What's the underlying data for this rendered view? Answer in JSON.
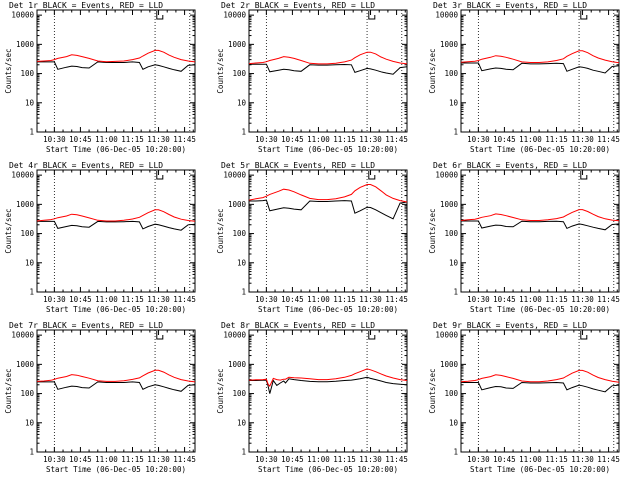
{
  "colors": {
    "events": "#000000",
    "lld": "#ff0000"
  },
  "common": {
    "ylabel": "Counts/sec",
    "xlabel": "Start Time (06-Dec-05 10:20:00)",
    "yscale": "log",
    "ylim": [
      1,
      15000
    ],
    "xlim_minutes": [
      10,
      101
    ],
    "xtick_minutes": [
      20,
      35,
      50,
      65,
      80,
      95
    ],
    "vlines_minutes": [
      20,
      78,
      98
    ],
    "marker_minute": 79
  },
  "chart_data": [
    {
      "type": "line",
      "title": "Det 1r BLACK = Events, RED = LLD",
      "xlabel": "Start Time (06-Dec-05 10:20:00)",
      "ylabel": "Counts/sec",
      "yscale": "log",
      "ylim": [
        1,
        15000
      ],
      "x": [
        10,
        14,
        18,
        20,
        22,
        27,
        30,
        33,
        36,
        40,
        45,
        50,
        55,
        60,
        65,
        69,
        71,
        74,
        78,
        80,
        83,
        86,
        89,
        93,
        97,
        101
      ],
      "xtick_labels": [
        "10:30",
        "10:45",
        "11:00",
        "11:15",
        "11:30",
        "11:45"
      ],
      "series": [
        {
          "name": "Events",
          "color": "#000000",
          "values": [
            250,
            250,
            250,
            250,
            140,
            165,
            180,
            175,
            160,
            155,
            250,
            240,
            240,
            240,
            250,
            240,
            140,
            170,
            200,
            190,
            170,
            150,
            135,
            120,
            190,
            200
          ]
        },
        {
          "name": "LLD",
          "color": "#ff0000",
          "values": [
            260,
            270,
            280,
            300,
            330,
            380,
            440,
            420,
            380,
            330,
            270,
            255,
            260,
            270,
            300,
            340,
            400,
            500,
            620,
            620,
            540,
            430,
            360,
            300,
            270,
            250
          ]
        }
      ]
    },
    {
      "type": "line",
      "title": "Det 2r BLACK = Events, RED = LLD",
      "xlabel": "Start Time (06-Dec-05 10:20:00)",
      "ylabel": "Counts/sec",
      "yscale": "log",
      "ylim": [
        1,
        15000
      ],
      "x": [
        10,
        14,
        18,
        20,
        22,
        27,
        30,
        33,
        36,
        40,
        45,
        50,
        55,
        60,
        65,
        69,
        71,
        74,
        78,
        80,
        83,
        86,
        89,
        93,
        97,
        101
      ],
      "xtick_labels": [
        "10:30",
        "10:45",
        "11:00",
        "11:15",
        "11:30",
        "11:45"
      ],
      "series": [
        {
          "name": "Events",
          "color": "#000000",
          "values": [
            210,
            210,
            210,
            210,
            115,
            130,
            140,
            135,
            125,
            120,
            200,
            195,
            195,
            200,
            205,
            200,
            110,
            125,
            150,
            145,
            130,
            115,
            105,
            95,
            160,
            170
          ]
        },
        {
          "name": "LLD",
          "color": "#ff0000",
          "values": [
            220,
            230,
            240,
            255,
            280,
            330,
            380,
            360,
            330,
            280,
            225,
            215,
            215,
            225,
            250,
            290,
            350,
            440,
            540,
            540,
            470,
            370,
            310,
            260,
            230,
            215
          ]
        }
      ]
    },
    {
      "type": "line",
      "title": "Det 3r BLACK = Events, RED = LLD",
      "xlabel": "Start Time (06-Dec-05 10:20:00)",
      "ylabel": "Counts/sec",
      "yscale": "log",
      "ylim": [
        1,
        15000
      ],
      "x": [
        10,
        14,
        18,
        20,
        22,
        27,
        30,
        33,
        36,
        40,
        45,
        50,
        55,
        60,
        65,
        69,
        71,
        74,
        78,
        80,
        83,
        86,
        89,
        93,
        97,
        101
      ],
      "xtick_labels": [
        "10:30",
        "10:45",
        "11:00",
        "11:15",
        "11:30",
        "11:45"
      ],
      "series": [
        {
          "name": "Events",
          "color": "#000000",
          "values": [
            230,
            230,
            230,
            230,
            125,
            145,
            155,
            150,
            140,
            135,
            225,
            215,
            215,
            220,
            225,
            220,
            120,
            140,
            170,
            165,
            150,
            130,
            120,
            105,
            175,
            185
          ]
        },
        {
          "name": "LLD",
          "color": "#ff0000",
          "values": [
            245,
            255,
            265,
            280,
            310,
            360,
            410,
            390,
            360,
            310,
            250,
            240,
            240,
            250,
            280,
            320,
            390,
            480,
            600,
            600,
            520,
            410,
            340,
            290,
            255,
            235
          ]
        }
      ]
    },
    {
      "type": "line",
      "title": "Det 4r BLACK = Events, RED = LLD",
      "xlabel": "Start Time (06-Dec-05 10:20:00)",
      "ylabel": "Counts/sec",
      "yscale": "log",
      "ylim": [
        1,
        15000
      ],
      "x": [
        10,
        14,
        18,
        20,
        22,
        27,
        30,
        33,
        36,
        40,
        45,
        50,
        55,
        60,
        65,
        69,
        71,
        74,
        78,
        80,
        83,
        86,
        89,
        93,
        97,
        101
      ],
      "xtick_labels": [
        "10:30",
        "10:45",
        "11:00",
        "11:15",
        "11:30",
        "11:45"
      ],
      "series": [
        {
          "name": "Events",
          "color": "#000000",
          "values": [
            260,
            260,
            260,
            260,
            150,
            175,
            190,
            185,
            170,
            165,
            260,
            250,
            250,
            255,
            260,
            250,
            145,
            175,
            210,
            200,
            180,
            160,
            145,
            130,
            200,
            210
          ]
        },
        {
          "name": "LLD",
          "color": "#ff0000",
          "values": [
            270,
            285,
            300,
            320,
            350,
            400,
            460,
            440,
            400,
            345,
            285,
            270,
            270,
            285,
            315,
            360,
            420,
            520,
            650,
            650,
            560,
            450,
            370,
            310,
            280,
            265
          ]
        }
      ]
    },
    {
      "type": "line",
      "title": "Det 5r BLACK = Events, RED = LLD",
      "xlabel": "Start Time (06-Dec-05 10:20:00)",
      "ylabel": "Counts/sec",
      "yscale": "log",
      "ylim": [
        1,
        15000
      ],
      "x": [
        10,
        14,
        18,
        20,
        22,
        27,
        30,
        33,
        36,
        40,
        45,
        50,
        55,
        60,
        65,
        69,
        71,
        74,
        78,
        80,
        83,
        86,
        89,
        93,
        97,
        101
      ],
      "xtick_labels": [
        "10:30",
        "10:45",
        "11:00",
        "11:15",
        "11:30",
        "11:45"
      ],
      "series": [
        {
          "name": "Events",
          "color": "#000000",
          "values": [
            1300,
            1300,
            1350,
            1400,
            600,
            700,
            760,
            740,
            690,
            650,
            1300,
            1250,
            1250,
            1300,
            1350,
            1300,
            500,
            600,
            800,
            780,
            650,
            520,
            420,
            320,
            1100,
            1200
          ]
        },
        {
          "name": "LLD",
          "color": "#ff0000",
          "values": [
            1400,
            1550,
            1700,
            1900,
            2200,
            2800,
            3300,
            3100,
            2700,
            2100,
            1600,
            1450,
            1450,
            1550,
            1800,
            2200,
            2900,
            3800,
            4800,
            4800,
            4000,
            2900,
            2100,
            1600,
            1350,
            1200
          ]
        }
      ]
    },
    {
      "type": "line",
      "title": "Det 6r BLACK = Events, RED = LLD",
      "xlabel": "Start Time (06-Dec-05 10:20:00)",
      "ylabel": "Counts/sec",
      "yscale": "log",
      "ylim": [
        1,
        15000
      ],
      "x": [
        10,
        14,
        18,
        20,
        22,
        27,
        30,
        33,
        36,
        40,
        45,
        50,
        55,
        60,
        65,
        69,
        71,
        74,
        78,
        80,
        83,
        86,
        89,
        93,
        97,
        101
      ],
      "xtick_labels": [
        "10:30",
        "10:45",
        "11:00",
        "11:15",
        "11:30",
        "11:45"
      ],
      "series": [
        {
          "name": "Events",
          "color": "#000000",
          "values": [
            270,
            270,
            270,
            270,
            155,
            180,
            195,
            190,
            175,
            170,
            265,
            255,
            255,
            260,
            265,
            255,
            150,
            180,
            215,
            205,
            185,
            165,
            150,
            135,
            205,
            215
          ]
        },
        {
          "name": "LLD",
          "color": "#ff0000",
          "values": [
            280,
            295,
            310,
            330,
            360,
            410,
            470,
            450,
            410,
            355,
            295,
            280,
            280,
            295,
            325,
            370,
            430,
            530,
            660,
            660,
            570,
            460,
            380,
            320,
            290,
            275
          ]
        }
      ]
    },
    {
      "type": "line",
      "title": "Det 7r BLACK = Events, RED = LLD",
      "xlabel": "Start Time (06-Dec-05 10:20:00)",
      "ylabel": "Counts/sec",
      "yscale": "log",
      "ylim": [
        1,
        15000
      ],
      "x": [
        10,
        14,
        18,
        20,
        22,
        27,
        30,
        33,
        36,
        40,
        45,
        50,
        55,
        60,
        65,
        69,
        71,
        74,
        78,
        80,
        83,
        86,
        89,
        93,
        97,
        101
      ],
      "xtick_labels": [
        "10:30",
        "10:45",
        "11:00",
        "11:15",
        "11:30",
        "11:45"
      ],
      "series": [
        {
          "name": "Events",
          "color": "#000000",
          "values": [
            250,
            250,
            250,
            250,
            140,
            165,
            180,
            175,
            160,
            155,
            250,
            240,
            240,
            240,
            250,
            240,
            140,
            170,
            200,
            190,
            170,
            150,
            135,
            120,
            190,
            200
          ]
        },
        {
          "name": "LLD",
          "color": "#ff0000",
          "values": [
            260,
            270,
            285,
            305,
            335,
            385,
            445,
            425,
            385,
            335,
            275,
            260,
            260,
            275,
            305,
            345,
            405,
            505,
            625,
            625,
            545,
            435,
            360,
            300,
            270,
            250
          ]
        }
      ]
    },
    {
      "type": "line",
      "title": "Det 8r BLACK = Events, RED = LLD",
      "xlabel": "Start Time (06-Dec-05 10:20:00)",
      "ylabel": "Counts/sec",
      "yscale": "log",
      "ylim": [
        1,
        15000
      ],
      "x": [
        10,
        14,
        18,
        20,
        21,
        22,
        24,
        26,
        28,
        30,
        31,
        33,
        36,
        40,
        45,
        50,
        55,
        60,
        65,
        69,
        71,
        74,
        78,
        80,
        83,
        86,
        89,
        93,
        97,
        101
      ],
      "xtick_labels": [
        "10:30",
        "10:45",
        "11:00",
        "11:15",
        "11:30",
        "11:45"
      ],
      "series": [
        {
          "name": "Events",
          "color": "#000000",
          "values": [
            280,
            280,
            285,
            290,
            180,
            100,
            280,
            190,
            230,
            270,
            230,
            320,
            300,
            280,
            260,
            255,
            255,
            265,
            280,
            290,
            300,
            320,
            360,
            330,
            300,
            270,
            240,
            220,
            210,
            200
          ]
        },
        {
          "name": "LLD",
          "color": "#ff0000",
          "values": [
            290,
            295,
            300,
            310,
            210,
            180,
            330,
            300,
            290,
            310,
            310,
            360,
            350,
            340,
            320,
            300,
            300,
            320,
            360,
            420,
            480,
            560,
            700,
            650,
            560,
            470,
            400,
            340,
            300,
            280
          ]
        }
      ]
    },
    {
      "type": "line",
      "title": "Det 9r BLACK = Events, RED = LLD",
      "xlabel": "Start Time (06-Dec-05 10:20:00)",
      "ylabel": "Counts/sec",
      "yscale": "log",
      "ylim": [
        1,
        15000
      ],
      "x": [
        10,
        14,
        18,
        20,
        22,
        27,
        30,
        33,
        36,
        40,
        45,
        50,
        55,
        60,
        65,
        69,
        71,
        74,
        78,
        80,
        83,
        86,
        89,
        93,
        97,
        101
      ],
      "xtick_labels": [
        "10:30",
        "10:45",
        "11:00",
        "11:15",
        "11:30",
        "11:45"
      ],
      "series": [
        {
          "name": "Events",
          "color": "#000000",
          "values": [
            240,
            240,
            240,
            240,
            135,
            160,
            175,
            170,
            155,
            150,
            240,
            230,
            230,
            235,
            240,
            230,
            135,
            160,
            195,
            185,
            165,
            145,
            130,
            115,
            185,
            195
          ]
        },
        {
          "name": "LLD",
          "color": "#ff0000",
          "values": [
            255,
            265,
            280,
            300,
            330,
            380,
            440,
            420,
            380,
            330,
            270,
            255,
            255,
            270,
            300,
            340,
            400,
            500,
            620,
            620,
            540,
            430,
            355,
            300,
            265,
            245
          ]
        }
      ]
    }
  ]
}
